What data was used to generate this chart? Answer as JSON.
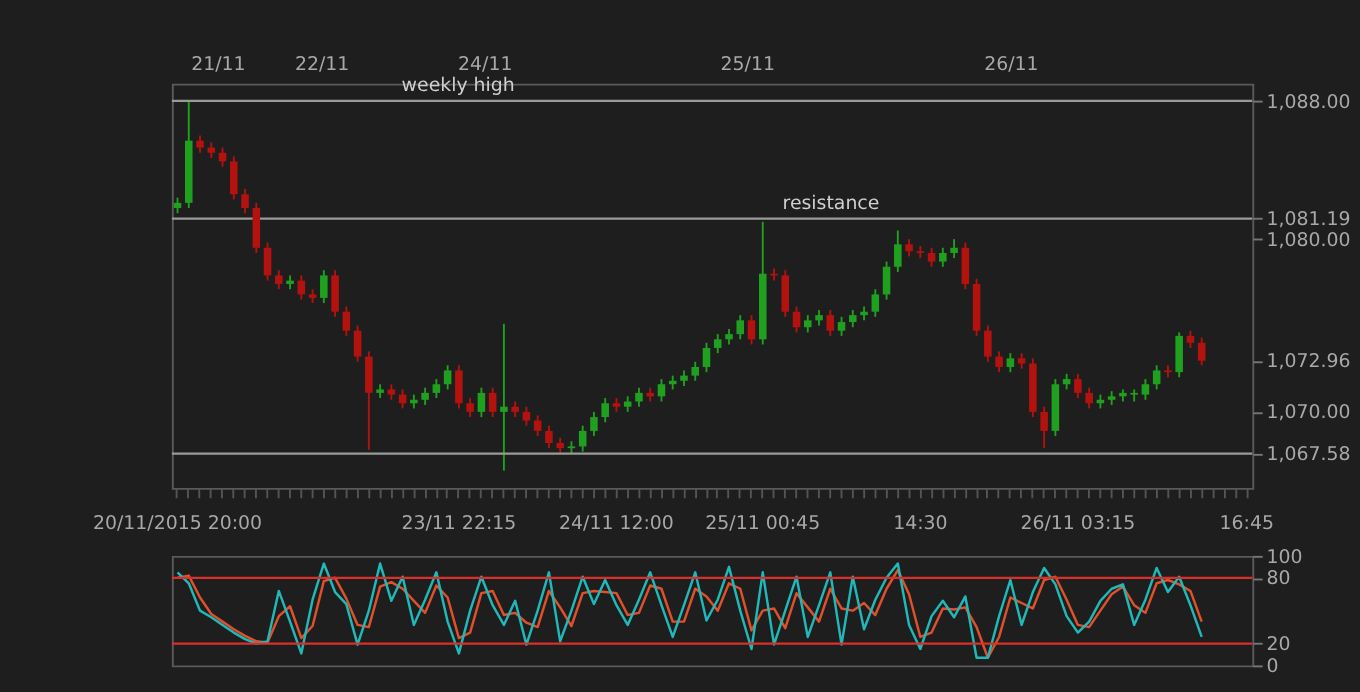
{
  "chart_data": [
    {
      "type": "candlestick",
      "categories": [
        "20/11/2015 20:00",
        null,
        null,
        null,
        null,
        null,
        null,
        null,
        null,
        null,
        null,
        null,
        null,
        null,
        null,
        null,
        null,
        null,
        null,
        null,
        null,
        null,
        null,
        null,
        null,
        "23/11 22:15",
        null,
        null,
        null,
        null,
        null,
        null,
        null,
        null,
        null,
        null,
        null,
        null,
        null,
        "24/11 12:00",
        null,
        null,
        null,
        null,
        null,
        null,
        null,
        null,
        null,
        null,
        null,
        null,
        "25/11 00:45",
        null,
        null,
        null,
        null,
        null,
        null,
        null,
        null,
        null,
        null,
        null,
        null,
        null,
        "14:30",
        null,
        null,
        null,
        null,
        null,
        null,
        null,
        null,
        null,
        null,
        null,
        null,
        null,
        "26/11 03:15",
        null,
        null,
        null,
        null,
        null,
        null,
        null,
        null,
        null,
        null,
        null,
        null,
        null,
        null,
        "16:45"
      ],
      "ohlc": [
        [
          1081.8,
          1082.4,
          1081.5,
          1082.1
        ],
        [
          1082.1,
          1088.0,
          1081.8,
          1085.7
        ],
        [
          1085.7,
          1086.0,
          1085.0,
          1085.3
        ],
        [
          1085.3,
          1085.6,
          1084.7,
          1085.0
        ],
        [
          1085.0,
          1085.3,
          1084.2,
          1084.5
        ],
        [
          1084.5,
          1084.8,
          1082.3,
          1082.6
        ],
        [
          1082.6,
          1082.9,
          1081.5,
          1081.8
        ],
        [
          1081.8,
          1082.1,
          1079.2,
          1079.5
        ],
        [
          1079.5,
          1079.8,
          1077.6,
          1077.9
        ],
        [
          1077.9,
          1078.2,
          1077.1,
          1077.4
        ],
        [
          1077.4,
          1077.9,
          1077.1,
          1077.6
        ],
        [
          1077.6,
          1077.9,
          1076.5,
          1076.8
        ],
        [
          1076.8,
          1077.1,
          1076.3,
          1076.6
        ],
        [
          1076.6,
          1078.2,
          1076.3,
          1077.9
        ],
        [
          1077.9,
          1078.2,
          1075.5,
          1075.8
        ],
        [
          1075.8,
          1076.1,
          1074.4,
          1074.7
        ],
        [
          1074.7,
          1075.0,
          1072.9,
          1073.2
        ],
        [
          1073.2,
          1073.5,
          1067.8,
          1071.1
        ],
        [
          1071.1,
          1071.6,
          1070.8,
          1071.3
        ],
        [
          1071.3,
          1071.6,
          1070.7,
          1071.0
        ],
        [
          1071.0,
          1071.3,
          1070.2,
          1070.5
        ],
        [
          1070.5,
          1071.0,
          1070.2,
          1070.7
        ],
        [
          1070.7,
          1071.4,
          1070.4,
          1071.1
        ],
        [
          1071.1,
          1071.9,
          1070.8,
          1071.6
        ],
        [
          1071.6,
          1072.7,
          1071.3,
          1072.4
        ],
        [
          1072.4,
          1072.7,
          1070.2,
          1070.5
        ],
        [
          1070.5,
          1070.8,
          1069.7,
          1070.0
        ],
        [
          1070.0,
          1071.4,
          1069.7,
          1071.1
        ],
        [
          1071.1,
          1071.4,
          1069.7,
          1070.0
        ],
        [
          1070.0,
          1075.1,
          1066.6,
          1070.3
        ],
        [
          1070.3,
          1070.6,
          1069.7,
          1070.0
        ],
        [
          1070.0,
          1070.3,
          1069.2,
          1069.5
        ],
        [
          1069.5,
          1069.8,
          1068.6,
          1068.9
        ],
        [
          1068.9,
          1069.2,
          1067.9,
          1068.2
        ],
        [
          1068.2,
          1068.5,
          1067.6,
          1067.9
        ],
        [
          1067.9,
          1068.3,
          1067.6,
          1068.0
        ],
        [
          1068.0,
          1069.2,
          1067.7,
          1068.9
        ],
        [
          1068.9,
          1070.0,
          1068.6,
          1069.7
        ],
        [
          1069.7,
          1070.8,
          1069.4,
          1070.5
        ],
        [
          1070.5,
          1070.8,
          1070.0,
          1070.3
        ],
        [
          1070.3,
          1070.9,
          1070.0,
          1070.6
        ],
        [
          1070.6,
          1071.4,
          1070.3,
          1071.1
        ],
        [
          1071.1,
          1071.4,
          1070.6,
          1070.9
        ],
        [
          1070.9,
          1071.9,
          1070.6,
          1071.6
        ],
        [
          1071.6,
          1072.1,
          1071.3,
          1071.8
        ],
        [
          1071.8,
          1072.4,
          1071.5,
          1072.1
        ],
        [
          1072.1,
          1072.9,
          1071.8,
          1072.6
        ],
        [
          1072.6,
          1074.0,
          1072.3,
          1073.7
        ],
        [
          1073.7,
          1074.5,
          1073.4,
          1074.2
        ],
        [
          1074.2,
          1074.8,
          1073.9,
          1074.5
        ],
        [
          1074.5,
          1075.6,
          1074.2,
          1075.3
        ],
        [
          1075.3,
          1075.6,
          1073.9,
          1074.2
        ],
        [
          1074.2,
          1081.0,
          1073.9,
          1078.0
        ],
        [
          1078.0,
          1078.3,
          1077.6,
          1077.9
        ],
        [
          1077.9,
          1078.2,
          1075.5,
          1075.8
        ],
        [
          1075.8,
          1076.1,
          1074.6,
          1074.9
        ],
        [
          1074.9,
          1075.6,
          1074.6,
          1075.3
        ],
        [
          1075.3,
          1075.9,
          1075.0,
          1075.6
        ],
        [
          1075.6,
          1075.9,
          1074.4,
          1074.7
        ],
        [
          1074.7,
          1075.5,
          1074.4,
          1075.2
        ],
        [
          1075.2,
          1075.9,
          1074.9,
          1075.6
        ],
        [
          1075.6,
          1076.1,
          1075.3,
          1075.8
        ],
        [
          1075.8,
          1077.1,
          1075.5,
          1076.8
        ],
        [
          1076.8,
          1078.7,
          1076.5,
          1078.4
        ],
        [
          1078.4,
          1080.5,
          1078.1,
          1079.7
        ],
        [
          1079.7,
          1080.0,
          1079.0,
          1079.3
        ],
        [
          1079.3,
          1079.6,
          1078.9,
          1079.2
        ],
        [
          1079.2,
          1079.5,
          1078.4,
          1078.7
        ],
        [
          1078.7,
          1079.5,
          1078.4,
          1079.2
        ],
        [
          1079.2,
          1080.0,
          1078.9,
          1079.5
        ],
        [
          1079.5,
          1079.8,
          1077.1,
          1077.4
        ],
        [
          1077.4,
          1077.7,
          1074.4,
          1074.7
        ],
        [
          1074.7,
          1075.0,
          1072.9,
          1073.2
        ],
        [
          1073.2,
          1073.5,
          1072.3,
          1072.6
        ],
        [
          1072.6,
          1073.4,
          1072.3,
          1073.1
        ],
        [
          1073.1,
          1073.4,
          1072.5,
          1072.8
        ],
        [
          1072.8,
          1073.1,
          1069.7,
          1070.0
        ],
        [
          1070.0,
          1070.3,
          1067.9,
          1068.9
        ],
        [
          1068.9,
          1071.9,
          1068.6,
          1071.6
        ],
        [
          1071.6,
          1072.2,
          1071.3,
          1071.9
        ],
        [
          1071.9,
          1072.2,
          1070.8,
          1071.1
        ],
        [
          1071.1,
          1071.4,
          1070.2,
          1070.5
        ],
        [
          1070.5,
          1071.0,
          1070.2,
          1070.7
        ],
        [
          1070.7,
          1071.2,
          1070.4,
          1070.9
        ],
        [
          1070.9,
          1071.3,
          1070.6,
          1071.1
        ],
        [
          1071.1,
          1071.3,
          1070.6,
          1071.0
        ],
        [
          1071.0,
          1071.9,
          1070.7,
          1071.6
        ],
        [
          1071.6,
          1072.7,
          1071.3,
          1072.4
        ],
        [
          1072.4,
          1072.7,
          1072.0,
          1072.3
        ],
        [
          1072.3,
          1074.6,
          1072.0,
          1074.4
        ],
        [
          1074.4,
          1074.7,
          1073.7,
          1074.0
        ],
        [
          1074.0,
          1074.3,
          1072.7,
          1072.96
        ],
        null,
        null,
        null,
        null
      ],
      "colors": [
        "#1fa01f",
        "#1fa01f",
        "#b3120f",
        "#b3120f",
        "#b3120f",
        "#b3120f",
        "#b3120f",
        "#b3120f",
        "#b3120f",
        "#b3120f",
        "#1fa01f",
        "#b3120f",
        "#b3120f",
        "#1fa01f",
        "#b3120f",
        "#b3120f",
        "#b3120f",
        "#b3120f",
        "#1fa01f",
        "#b3120f",
        "#b3120f",
        "#1fa01f",
        "#1fa01f",
        "#1fa01f",
        "#1fa01f",
        "#b3120f",
        "#b3120f",
        "#1fa01f",
        "#b3120f",
        "#1fa01f",
        "#b3120f",
        "#b3120f",
        "#b3120f",
        "#b3120f",
        "#b3120f",
        "#1fa01f",
        "#1fa01f",
        "#1fa01f",
        "#1fa01f",
        "#b3120f",
        "#1fa01f",
        "#1fa01f",
        "#b3120f",
        "#1fa01f",
        "#1fa01f",
        "#1fa01f",
        "#1fa01f",
        "#1fa01f",
        "#1fa01f",
        "#1fa01f",
        "#1fa01f",
        "#b3120f",
        "#1fa01f",
        "#b3120f",
        "#b3120f",
        "#b3120f",
        "#1fa01f",
        "#1fa01f",
        "#b3120f",
        "#1fa01f",
        "#1fa01f",
        "#1fa01f",
        "#1fa01f",
        "#1fa01f",
        "#1fa01f",
        "#b3120f",
        "#b3120f",
        "#b3120f",
        "#1fa01f",
        "#1fa01f",
        "#b3120f",
        "#b3120f",
        "#b3120f",
        "#b3120f",
        "#1fa01f",
        "#b3120f",
        "#b3120f",
        "#b3120f",
        "#1fa01f",
        "#1fa01f",
        "#b3120f",
        "#b3120f",
        "#1fa01f",
        "#1fa01f",
        "#1fa01f",
        "#1fa01f",
        "#1fa01f",
        "#1fa01f",
        "#b3120f",
        "#1fa01f",
        "#b3120f",
        "#b3120f",
        null,
        null,
        null,
        null
      ],
      "ylim": [
        1065.6,
        1089
      ],
      "yticks": [
        {
          "value": 1067.58,
          "label": "1,067.58"
        },
        {
          "value": 1070,
          "label": "1,070.00"
        },
        {
          "value": 1072.96,
          "label": "1,072.96"
        },
        {
          "value": 1080,
          "label": "1,080.00"
        },
        {
          "value": 1081.19,
          "label": "1,081.19"
        },
        {
          "value": 1088,
          "label": "1,088.00"
        }
      ],
      "ref_lines": [
        {
          "axis": "y",
          "value": 1088.0,
          "label": "weekly high",
          "color": "#9a9a9a"
        },
        {
          "axis": "y",
          "value": 1081.19,
          "label": "resistance",
          "color": "#9a9a9a"
        },
        {
          "axis": "y",
          "value": 1067.58,
          "label": null,
          "color": "#9a9a9a"
        }
      ],
      "annotations": [
        "21/11",
        "22/11",
        "24/11",
        "25/11",
        "26/11"
      ],
      "grid": false
    },
    {
      "type": "line",
      "categories": [
        null,
        null,
        null,
        null,
        null,
        null,
        null,
        null,
        null,
        null,
        null,
        null,
        null,
        null,
        null,
        null,
        null,
        null,
        null,
        null,
        null,
        null,
        null,
        null,
        null,
        null,
        null,
        null,
        null,
        null,
        null,
        null,
        null,
        null,
        null,
        null,
        null,
        null,
        null,
        null,
        null,
        null,
        null,
        null,
        null,
        null,
        null,
        null,
        null,
        null,
        null,
        null,
        null,
        null,
        null,
        null,
        null,
        null,
        null,
        null,
        null,
        null,
        null,
        null,
        null,
        null,
        null,
        null,
        null,
        null,
        null,
        null,
        null,
        null,
        null,
        null,
        null,
        null,
        null,
        null,
        null,
        null,
        null,
        null,
        null,
        null,
        null,
        null,
        null,
        null,
        null,
        null,
        null,
        null,
        null,
        null
      ],
      "series": [
        {
          "color": "#e0502a",
          "values": [
            80,
            82,
            62,
            47,
            40,
            33,
            27,
            22,
            21,
            45,
            54,
            25,
            36,
            77,
            80,
            61,
            37,
            35,
            72,
            76,
            70,
            59,
            48,
            73,
            62,
            25,
            30,
            66,
            68,
            46,
            48,
            39,
            35,
            68,
            53,
            36,
            66,
            68,
            67,
            66,
            46,
            48,
            73,
            70,
            40,
            40,
            70,
            63,
            50,
            75,
            70,
            32,
            50,
            52,
            34,
            66,
            53,
            40,
            70,
            52,
            50,
            57,
            46,
            70,
            87,
            65,
            26,
            30,
            52,
            51,
            53,
            35,
            7,
            26,
            62,
            57,
            52,
            78,
            81,
            60,
            37,
            35,
            50,
            65,
            72,
            55,
            48,
            75,
            78,
            74,
            68,
            40,
            null,
            null,
            null,
            null
          ]
        },
        {
          "color": "#20b8b8",
          "values": [
            85,
            75,
            50,
            44,
            37,
            30,
            24,
            20,
            22,
            68,
            40,
            11,
            60,
            93,
            67,
            56,
            19,
            50,
            93,
            59,
            81,
            37,
            60,
            85,
            40,
            11,
            50,
            81,
            55,
            37,
            59,
            19,
            50,
            85,
            22,
            50,
            81,
            56,
            78,
            55,
            37,
            60,
            85,
            55,
            26,
            55,
            85,
            41,
            60,
            90,
            50,
            15,
            85,
            19,
            50,
            81,
            26,
            55,
            85,
            19,
            81,
            33,
            60,
            80,
            93,
            37,
            15,
            45,
            59,
            44,
            63,
            7,
            7,
            45,
            78,
            37,
            67,
            89,
            74,
            45,
            30,
            40,
            59,
            70,
            74,
            37,
            60,
            89,
            67,
            81,
            55,
            26,
            null,
            null,
            null,
            null
          ]
        }
      ],
      "ylim": [
        0,
        100
      ],
      "yticks": [
        0,
        20,
        80,
        100
      ],
      "ref_lines": [
        {
          "axis": "y",
          "value": 80,
          "color": "#d9302c"
        },
        {
          "axis": "y",
          "value": 20,
          "color": "#d9302c"
        }
      ],
      "tick_labels": "y",
      "grid": false,
      "marker": "none"
    }
  ]
}
